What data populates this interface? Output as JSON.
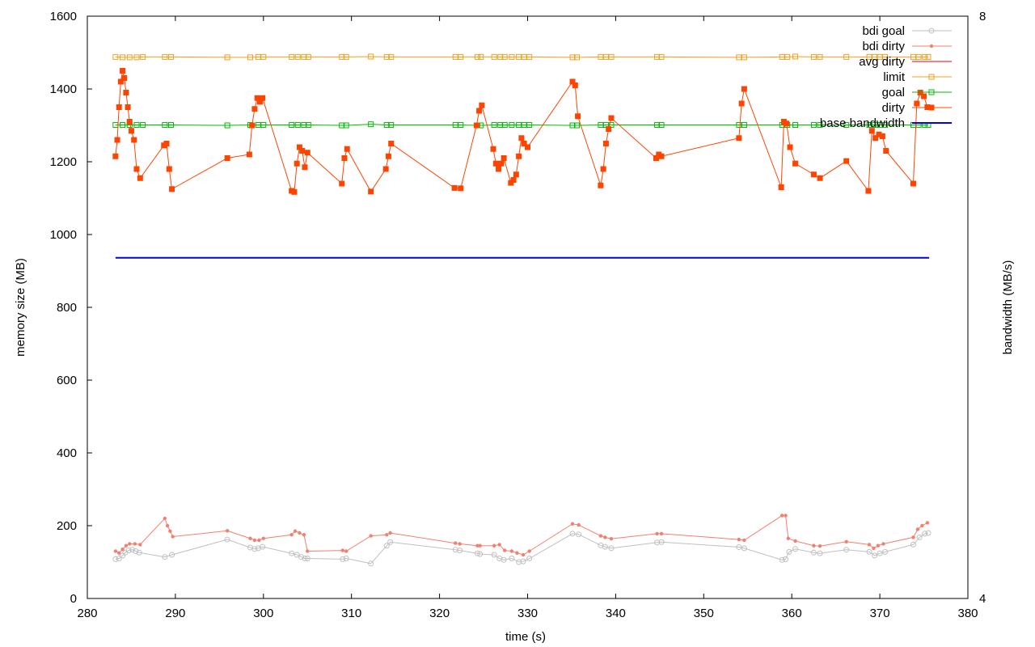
{
  "chart_data": {
    "type": "line",
    "xlabel": "time (s)",
    "ylabel": "memory size (MB)",
    "y2label": "bandwidth (MB/s)",
    "xlim": [
      280,
      380
    ],
    "ylim": [
      0,
      1600
    ],
    "y2lim": [
      4,
      8
    ],
    "xticks": [
      280,
      290,
      300,
      310,
      320,
      330,
      340,
      350,
      360,
      370,
      380
    ],
    "yticks": [
      0,
      200,
      400,
      600,
      800,
      1000,
      1200,
      1400,
      1600
    ],
    "y2ticks": [
      4,
      8
    ],
    "legend_position": "top-right",
    "series": [
      {
        "name": "bdi goal",
        "color": "#c0c0c0",
        "marker": "circle-open",
        "axis": "y",
        "x": [
          283.2,
          283.6,
          284,
          284.3,
          284.7,
          285.1,
          285.5,
          285.9,
          288.8,
          289.6,
          295.9,
          298.5,
          299,
          299.4,
          299.9,
          303.2,
          303.8,
          304.3,
          304.7,
          305,
          309,
          309.4,
          312.2,
          314,
          314.4,
          321.8,
          322.3,
          324.3,
          324.6,
          326.2,
          326.8,
          327.3,
          328.2,
          329,
          329.5,
          330.2,
          335.1,
          335.8,
          338.3,
          338.8,
          339.5,
          344.7,
          345.2,
          354,
          354.6,
          358.9,
          359.3,
          359.7,
          360.4,
          362.5,
          363.2,
          366.2,
          368.8,
          369.4,
          370,
          370.6,
          373.8,
          374.5,
          375.1,
          375.5
        ],
        "values": [
          108,
          110,
          118,
          126,
          132,
          134,
          130,
          126,
          114,
          120,
          162,
          140,
          136,
          138,
          142,
          124,
          120,
          114,
          110,
          110,
          108,
          110,
          96,
          145,
          155,
          134,
          132,
          124,
          122,
          120,
          110,
          106,
          110,
          100,
          102,
          110,
          178,
          176,
          146,
          142,
          138,
          154,
          155,
          141,
          138,
          106,
          108,
          128,
          136,
          126,
          124,
          134,
          128,
          118,
          124,
          128,
          148,
          168,
          178,
          180
        ]
      },
      {
        "name": "bdi dirty",
        "color": "#f08070",
        "marker": "dot",
        "axis": "y",
        "x": [
          283.2,
          283.6,
          284,
          284.4,
          284.8,
          285.4,
          286,
          288.8,
          289.1,
          289.4,
          289.7,
          295.9,
          298.5,
          299,
          299.5,
          300,
          303.2,
          303.6,
          304.1,
          304.6,
          305,
          309,
          309.4,
          312.2,
          314,
          314.4,
          321.8,
          322.3,
          324.3,
          324.6,
          326.2,
          326.8,
          327.4,
          328.2,
          328.8,
          329.5,
          330.2,
          335.1,
          335.8,
          338.3,
          338.8,
          339.5,
          344.7,
          345.2,
          354,
          354.6,
          358.9,
          359.3,
          359.6,
          360.4,
          362.5,
          363.2,
          366.2,
          368.8,
          369.3,
          369.8,
          370.4,
          373.8,
          374.3,
          374.8,
          375.4
        ],
        "values": [
          130,
          125,
          135,
          145,
          150,
          150,
          148,
          220,
          200,
          185,
          170,
          186,
          165,
          160,
          160,
          165,
          175,
          185,
          180,
          175,
          130,
          132,
          130,
          172,
          175,
          180,
          152,
          150,
          145,
          145,
          145,
          148,
          132,
          130,
          125,
          120,
          130,
          205,
          202,
          172,
          168,
          164,
          178,
          178,
          162,
          160,
          228,
          228,
          165,
          158,
          145,
          144,
          156,
          148,
          138,
          145,
          150,
          168,
          190,
          200,
          208
        ]
      },
      {
        "name": "avg dirty",
        "color": "#e8000b",
        "marker": "none",
        "axis": "y",
        "x": [],
        "values": []
      },
      {
        "name": "limit",
        "color": "#f0a020",
        "marker": "square-open",
        "axis": "y",
        "x": [
          283.2,
          284,
          284.8,
          285.6,
          286.3,
          288.8,
          289.5,
          295.9,
          298.5,
          299.4,
          300,
          303.2,
          303.9,
          304.6,
          305.1,
          308.9,
          309.4,
          312.2,
          314,
          314.5,
          321.8,
          322.4,
          324.3,
          324.7,
          326.2,
          326.9,
          327.4,
          328.2,
          329,
          329.6,
          330.2,
          335.1,
          335.6,
          338.3,
          338.9,
          339.5,
          344.7,
          345.2,
          354,
          354.6,
          358.9,
          359.5,
          360.4,
          362.5,
          363.2,
          366.2,
          368.8,
          369.4,
          370,
          370.6,
          373.8,
          374.4,
          375.1,
          375.5
        ],
        "values": [
          1488,
          1487,
          1487,
          1487,
          1488,
          1488,
          1488,
          1487,
          1487,
          1488,
          1488,
          1488,
          1488,
          1488,
          1488,
          1488,
          1488,
          1489,
          1488,
          1488,
          1488,
          1488,
          1488,
          1488,
          1488,
          1488,
          1488,
          1488,
          1488,
          1488,
          1488,
          1487,
          1487,
          1488,
          1488,
          1488,
          1488,
          1488,
          1487,
          1487,
          1488,
          1488,
          1489,
          1488,
          1488,
          1488,
          1488,
          1488,
          1488,
          1488,
          1488,
          1488,
          1488,
          1488
        ]
      },
      {
        "name": "goal",
        "color": "#00bb00",
        "marker": "square-open",
        "axis": "y",
        "x": [
          283.2,
          284,
          284.8,
          285.6,
          286.3,
          288.8,
          289.5,
          295.9,
          298.5,
          299.4,
          300,
          303.2,
          303.9,
          304.6,
          305.1,
          308.9,
          309.4,
          312.2,
          314,
          314.5,
          321.8,
          322.4,
          324.3,
          324.7,
          326.2,
          326.9,
          327.4,
          328.2,
          329,
          329.6,
          330.2,
          335.1,
          335.6,
          338.3,
          338.9,
          339.5,
          344.7,
          345.2,
          354,
          354.6,
          358.9,
          359.5,
          360.4,
          362.5,
          363.2,
          366.2,
          368.8,
          369.4,
          370,
          370.6,
          373.8,
          374.4,
          375.1,
          375.5
        ],
        "values": [
          1301,
          1301,
          1301,
          1301,
          1301,
          1301,
          1301,
          1300,
          1301,
          1301,
          1301,
          1301,
          1301,
          1301,
          1301,
          1300,
          1300,
          1303,
          1301,
          1301,
          1301,
          1301,
          1300,
          1300,
          1301,
          1301,
          1301,
          1301,
          1301,
          1301,
          1301,
          1300,
          1300,
          1301,
          1301,
          1301,
          1301,
          1301,
          1301,
          1301,
          1301,
          1301,
          1301,
          1301,
          1301,
          1301,
          1301,
          1301,
          1301,
          1301,
          1301,
          1301,
          1301,
          1301
        ]
      },
      {
        "name": "dirty",
        "color": "#ff4400",
        "marker": "square-filled",
        "axis": "y",
        "x": [
          283.2,
          283.4,
          283.6,
          283.8,
          284,
          284.2,
          284.4,
          284.6,
          284.8,
          285,
          285.3,
          285.6,
          286,
          288.7,
          289,
          289.3,
          289.6,
          295.9,
          298.4,
          298.7,
          299,
          299.3,
          299.6,
          299.9,
          303.2,
          303.5,
          303.8,
          304.1,
          304.4,
          304.7,
          305,
          308.9,
          309.2,
          309.5,
          312.2,
          313.9,
          314.2,
          314.5,
          321.7,
          322.4,
          324.2,
          324.5,
          324.8,
          326.1,
          326.4,
          326.7,
          327,
          327.3,
          328.1,
          328.4,
          328.7,
          329,
          329.3,
          329.6,
          330,
          335.1,
          335.4,
          335.7,
          338.3,
          338.6,
          338.9,
          339.2,
          339.5,
          344.6,
          344.9,
          345.2,
          354,
          354.3,
          354.6,
          358.8,
          359.1,
          359.4,
          359.8,
          360.4,
          362.5,
          363.2,
          366.2,
          368.7,
          369.1,
          369.5,
          369.9,
          370.3,
          370.7,
          373.8,
          374.2,
          374.6,
          375,
          375.4
        ],
        "values": [
          1215,
          1260,
          1350,
          1420,
          1450,
          1430,
          1390,
          1350,
          1310,
          1285,
          1260,
          1180,
          1155,
          1245,
          1250,
          1180,
          1125,
          1210,
          1220,
          1300,
          1345,
          1375,
          1365,
          1375,
          1120,
          1117,
          1195,
          1240,
          1230,
          1185,
          1225,
          1140,
          1210,
          1235,
          1118,
          1180,
          1215,
          1250,
          1128,
          1127,
          1300,
          1340,
          1355,
          1235,
          1195,
          1180,
          1195,
          1210,
          1142,
          1150,
          1165,
          1215,
          1265,
          1250,
          1240,
          1420,
          1410,
          1325,
          1135,
          1180,
          1250,
          1290,
          1320,
          1210,
          1220,
          1215,
          1265,
          1360,
          1400,
          1130,
          1310,
          1305,
          1240,
          1195,
          1165,
          1155,
          1202,
          1120,
          1285,
          1265,
          1275,
          1270,
          1230,
          1140,
          1360,
          1390,
          1380,
          1350
        ]
      },
      {
        "name": "base bandwidth",
        "color": "#0000ee",
        "marker": "none",
        "axis": "y2",
        "x": [
          283.2,
          290,
          300,
          310,
          320,
          330,
          340,
          350,
          360,
          370,
          375.6
        ],
        "values": [
          6.34,
          6.34,
          6.34,
          6.34,
          6.34,
          6.34,
          6.34,
          6.34,
          6.34,
          6.34,
          6.34
        ]
      }
    ]
  }
}
